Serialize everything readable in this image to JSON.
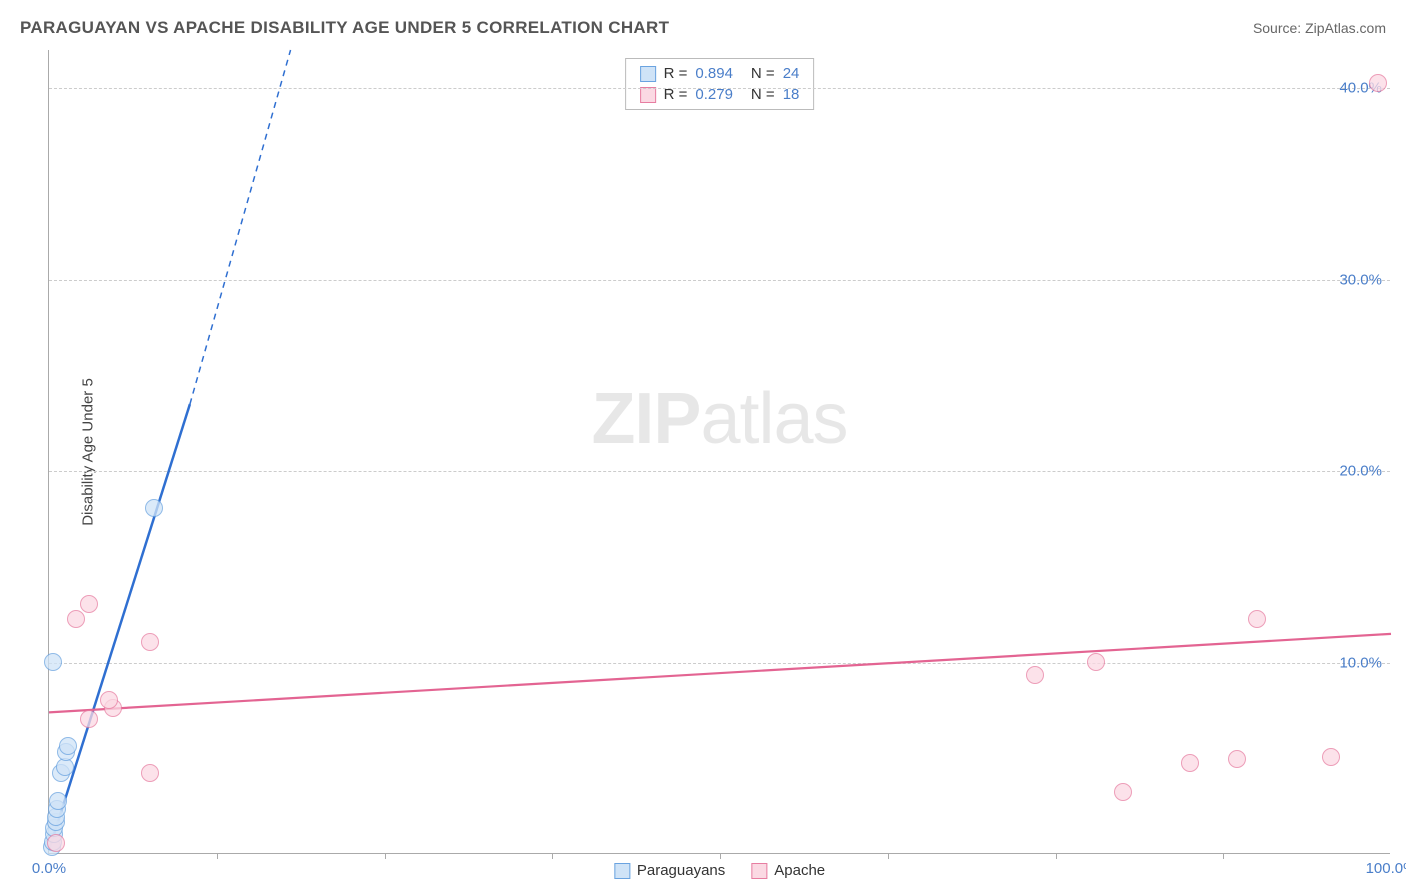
{
  "header": {
    "title": "PARAGUAYAN VS APACHE DISABILITY AGE UNDER 5 CORRELATION CHART",
    "source": "Source: ZipAtlas.com"
  },
  "chart": {
    "type": "scatter",
    "y_axis_label": "Disability Age Under 5",
    "xlim": [
      0,
      100
    ],
    "ylim": [
      0,
      42
    ],
    "x_ticks_labeled": [
      {
        "value": 0,
        "label": "0.0%"
      },
      {
        "value": 100,
        "label": "100.0%"
      }
    ],
    "x_ticks_minor": [
      12.5,
      25,
      37.5,
      50,
      62.5,
      75,
      87.5
    ],
    "y_ticks": [
      {
        "value": 10,
        "label": "10.0%"
      },
      {
        "value": 20,
        "label": "20.0%"
      },
      {
        "value": 30,
        "label": "30.0%"
      },
      {
        "value": 40,
        "label": "40.0%"
      }
    ],
    "background_color": "#ffffff",
    "grid_color": "#cccccc",
    "axis_color": "#aaaaaa",
    "tick_label_color": "#4a7ec9",
    "watermark": "ZIPatlas",
    "series": [
      {
        "name": "Paraguayans",
        "marker_fill": "#cfe3f7",
        "marker_stroke": "#6aa3e0",
        "marker_opacity": 0.75,
        "marker_radius": 9,
        "line_color": "#2f6fd1",
        "line_width": 2.5,
        "R": 0.894,
        "N": 24,
        "trend": {
          "x1": 0,
          "y1": 0.2,
          "x2_solid": 10.5,
          "y2_solid": 23.5,
          "x2_dash": 18,
          "y2_dash": 42
        },
        "points": [
          {
            "x": 0.2,
            "y": 0.3
          },
          {
            "x": 0.3,
            "y": 0.6
          },
          {
            "x": 0.35,
            "y": 1.0
          },
          {
            "x": 0.4,
            "y": 1.3
          },
          {
            "x": 0.5,
            "y": 1.6
          },
          {
            "x": 0.55,
            "y": 1.9
          },
          {
            "x": 0.6,
            "y": 2.3
          },
          {
            "x": 0.7,
            "y": 2.7
          },
          {
            "x": 0.9,
            "y": 4.2
          },
          {
            "x": 1.2,
            "y": 4.5
          },
          {
            "x": 1.3,
            "y": 5.3
          },
          {
            "x": 1.4,
            "y": 5.6
          },
          {
            "x": 0.3,
            "y": 10.0
          },
          {
            "x": 7.8,
            "y": 18.0
          }
        ]
      },
      {
        "name": "Apache",
        "marker_fill": "#fbd9e3",
        "marker_stroke": "#e77da1",
        "marker_opacity": 0.75,
        "marker_radius": 9,
        "line_color": "#e36492",
        "line_width": 2.2,
        "R": 0.279,
        "N": 18,
        "trend": {
          "x1": 0,
          "y1": 7.4,
          "x2_solid": 100,
          "y2_solid": 11.5
        },
        "points": [
          {
            "x": 0.5,
            "y": 0.5
          },
          {
            "x": 7.5,
            "y": 4.2
          },
          {
            "x": 3.0,
            "y": 7.0
          },
          {
            "x": 4.8,
            "y": 7.6
          },
          {
            "x": 4.5,
            "y": 8.0
          },
          {
            "x": 7.5,
            "y": 11.0
          },
          {
            "x": 2.0,
            "y": 12.2
          },
          {
            "x": 3.0,
            "y": 13.0
          },
          {
            "x": 80.0,
            "y": 3.2
          },
          {
            "x": 85.0,
            "y": 4.7
          },
          {
            "x": 88.5,
            "y": 4.9
          },
          {
            "x": 95.5,
            "y": 5.0
          },
          {
            "x": 73.5,
            "y": 9.3
          },
          {
            "x": 78.0,
            "y": 10.0
          },
          {
            "x": 90.0,
            "y": 12.2
          },
          {
            "x": 99.0,
            "y": 40.2
          }
        ]
      }
    ],
    "top_legend": [
      {
        "swatch_fill": "#cfe3f7",
        "swatch_stroke": "#6aa3e0",
        "r_label": "R =",
        "r_value": "0.894",
        "n_label": "N =",
        "n_value": "24"
      },
      {
        "swatch_fill": "#fbd9e3",
        "swatch_stroke": "#e77da1",
        "r_label": "R =",
        "r_value": "0.279",
        "n_label": "N =",
        "n_value": "18"
      }
    ],
    "bottom_legend": [
      {
        "swatch_fill": "#cfe3f7",
        "swatch_stroke": "#6aa3e0",
        "label": "Paraguayans"
      },
      {
        "swatch_fill": "#fbd9e3",
        "swatch_stroke": "#e77da1",
        "label": "Apache"
      }
    ]
  }
}
